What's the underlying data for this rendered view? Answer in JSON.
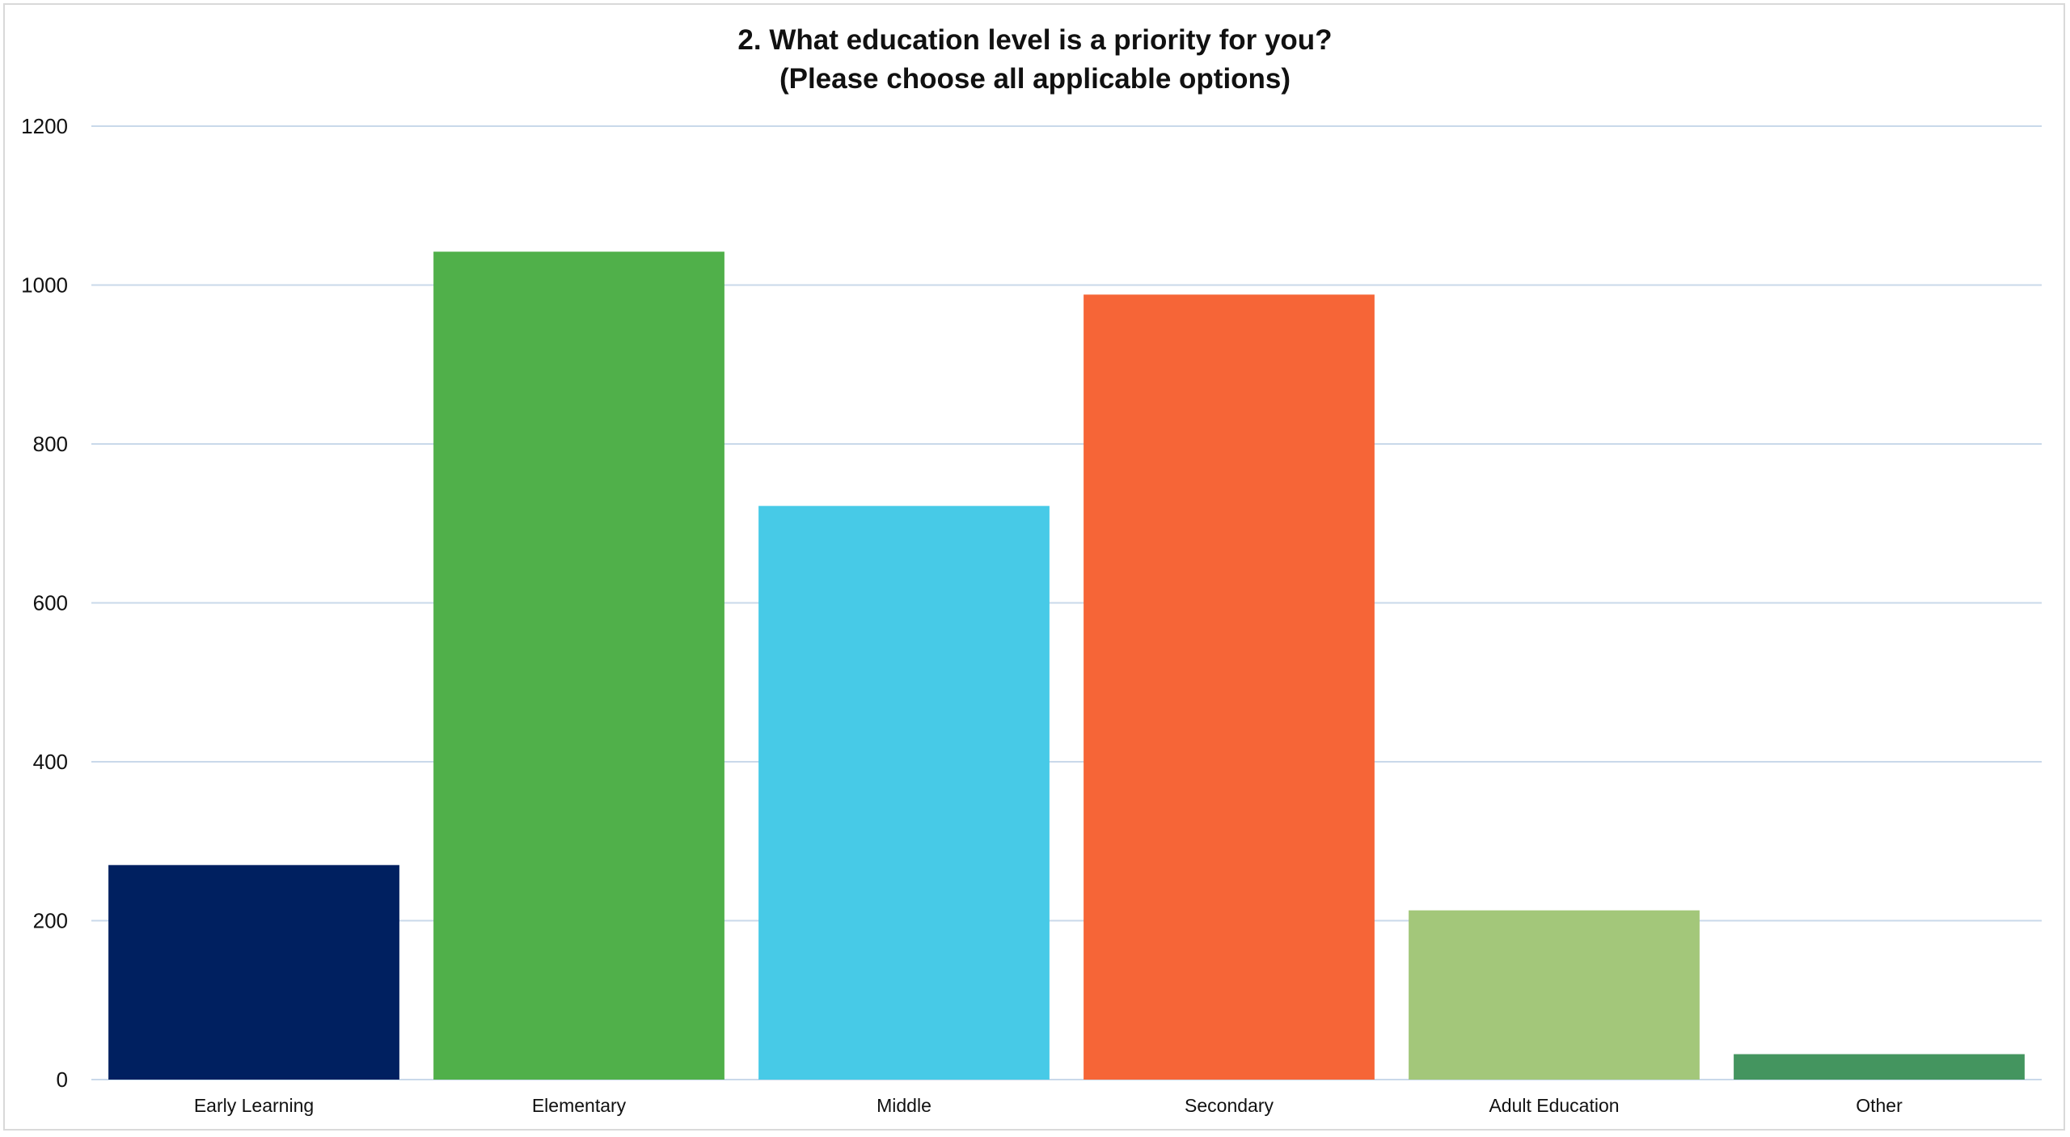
{
  "chart_data": {
    "type": "bar",
    "title": "2. What education level is a priority for you?",
    "subtitle": "(Please choose all applicable options)",
    "categories": [
      "Early Learning",
      "Elementary",
      "Middle",
      "Secondary",
      "Adult Education",
      "Other"
    ],
    "values": [
      270,
      1042,
      722,
      988,
      213,
      32
    ],
    "colors": [
      "#002060",
      "#50B04A",
      "#47CAE7",
      "#F66537",
      "#A3C77A",
      "#44955F"
    ],
    "ylim": [
      0,
      1200
    ],
    "yticks": [
      0,
      200,
      400,
      600,
      800,
      1000,
      1200
    ],
    "xlabel": "",
    "ylabel": "",
    "grid": true,
    "gridline_color": "#c9d9ea",
    "legend": "none"
  }
}
